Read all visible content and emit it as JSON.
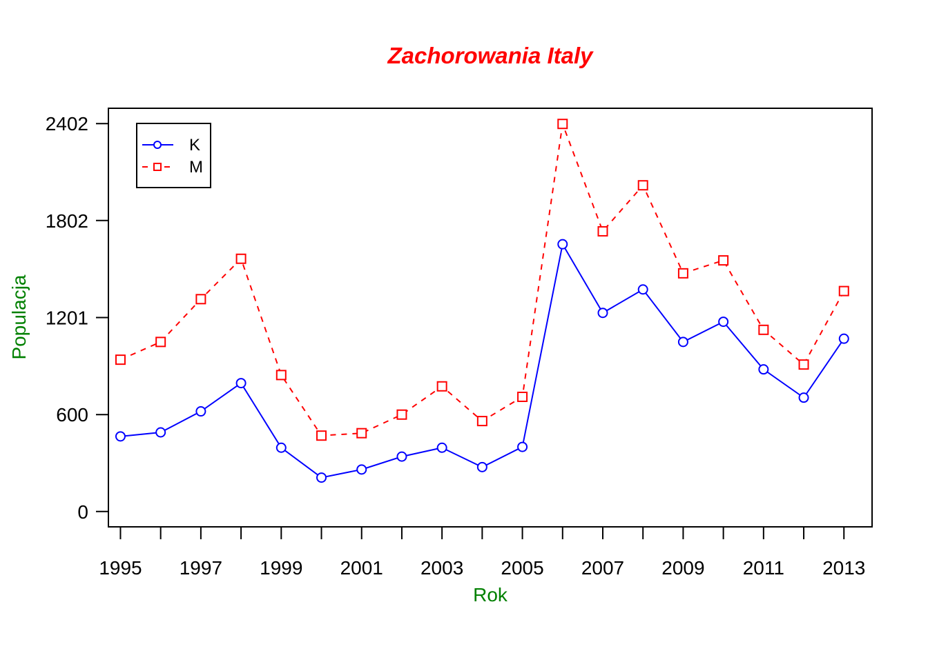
{
  "chart_data": {
    "type": "line",
    "title": "Zachorowania Italy",
    "xlabel": "Rok",
    "ylabel": "Populacja",
    "x": [
      1995,
      1996,
      1997,
      1998,
      1999,
      2000,
      2001,
      2002,
      2003,
      2004,
      2005,
      2006,
      2007,
      2008,
      2009,
      2010,
      2011,
      2012,
      2013
    ],
    "x_tick_labels": [
      "1995",
      "1997",
      "1999",
      "2001",
      "2003",
      "2005",
      "2007",
      "2009",
      "2011",
      "2013"
    ],
    "y_ticks": [
      0,
      600,
      1201,
      1802,
      2402
    ],
    "y_tick_labels": [
      "0",
      "600",
      "1201",
      "1802",
      "2402"
    ],
    "xlim": [
      1994.7,
      2013.7
    ],
    "ylim": [
      -95,
      2497
    ],
    "grid": false,
    "legend_position": "top-left",
    "series": [
      {
        "name": "K",
        "color": "#0000ff",
        "line_style": "solid",
        "marker": "circle",
        "values": [
          465,
          490,
          620,
          795,
          395,
          210,
          260,
          340,
          395,
          275,
          400,
          1655,
          1230,
          1375,
          1050,
          1175,
          880,
          705,
          1070
        ]
      },
      {
        "name": "M",
        "color": "#ff0000",
        "line_style": "dashed",
        "marker": "square",
        "values": [
          940,
          1050,
          1315,
          1565,
          845,
          470,
          485,
          600,
          775,
          560,
          710,
          2400,
          1735,
          2020,
          1475,
          1555,
          1125,
          910,
          1365
        ]
      }
    ]
  }
}
